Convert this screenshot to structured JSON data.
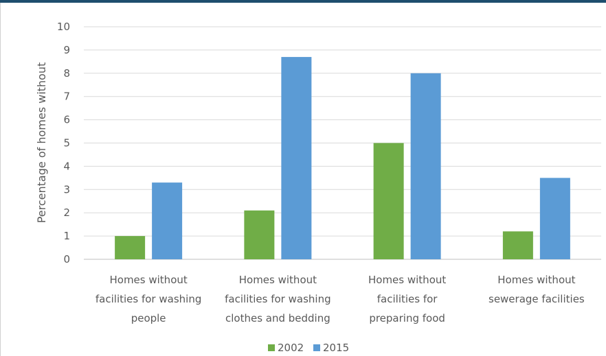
{
  "chart_data": {
    "type": "bar",
    "title": "",
    "xlabel": "",
    "ylabel": "Percentage of homes without",
    "ylim": [
      0,
      10
    ],
    "yticks": [
      0,
      1,
      2,
      3,
      4,
      5,
      6,
      7,
      8,
      9,
      10
    ],
    "grid": true,
    "legend_position": "bottom",
    "categories": [
      [
        "Homes without",
        "facilities for washing",
        "people"
      ],
      [
        "Homes without",
        "facilities for washing",
        "clothes and bedding"
      ],
      [
        "Homes without",
        "facilities for",
        "preparing food"
      ],
      [
        "Homes without",
        "sewerage facilities"
      ]
    ],
    "series": [
      {
        "name": "2002",
        "color": "#70ad47",
        "values": [
          1.0,
          2.1,
          5.0,
          1.2
        ]
      },
      {
        "name": "2015",
        "color": "#5b9bd5",
        "values": [
          3.3,
          8.7,
          8.0,
          3.5
        ]
      }
    ]
  }
}
